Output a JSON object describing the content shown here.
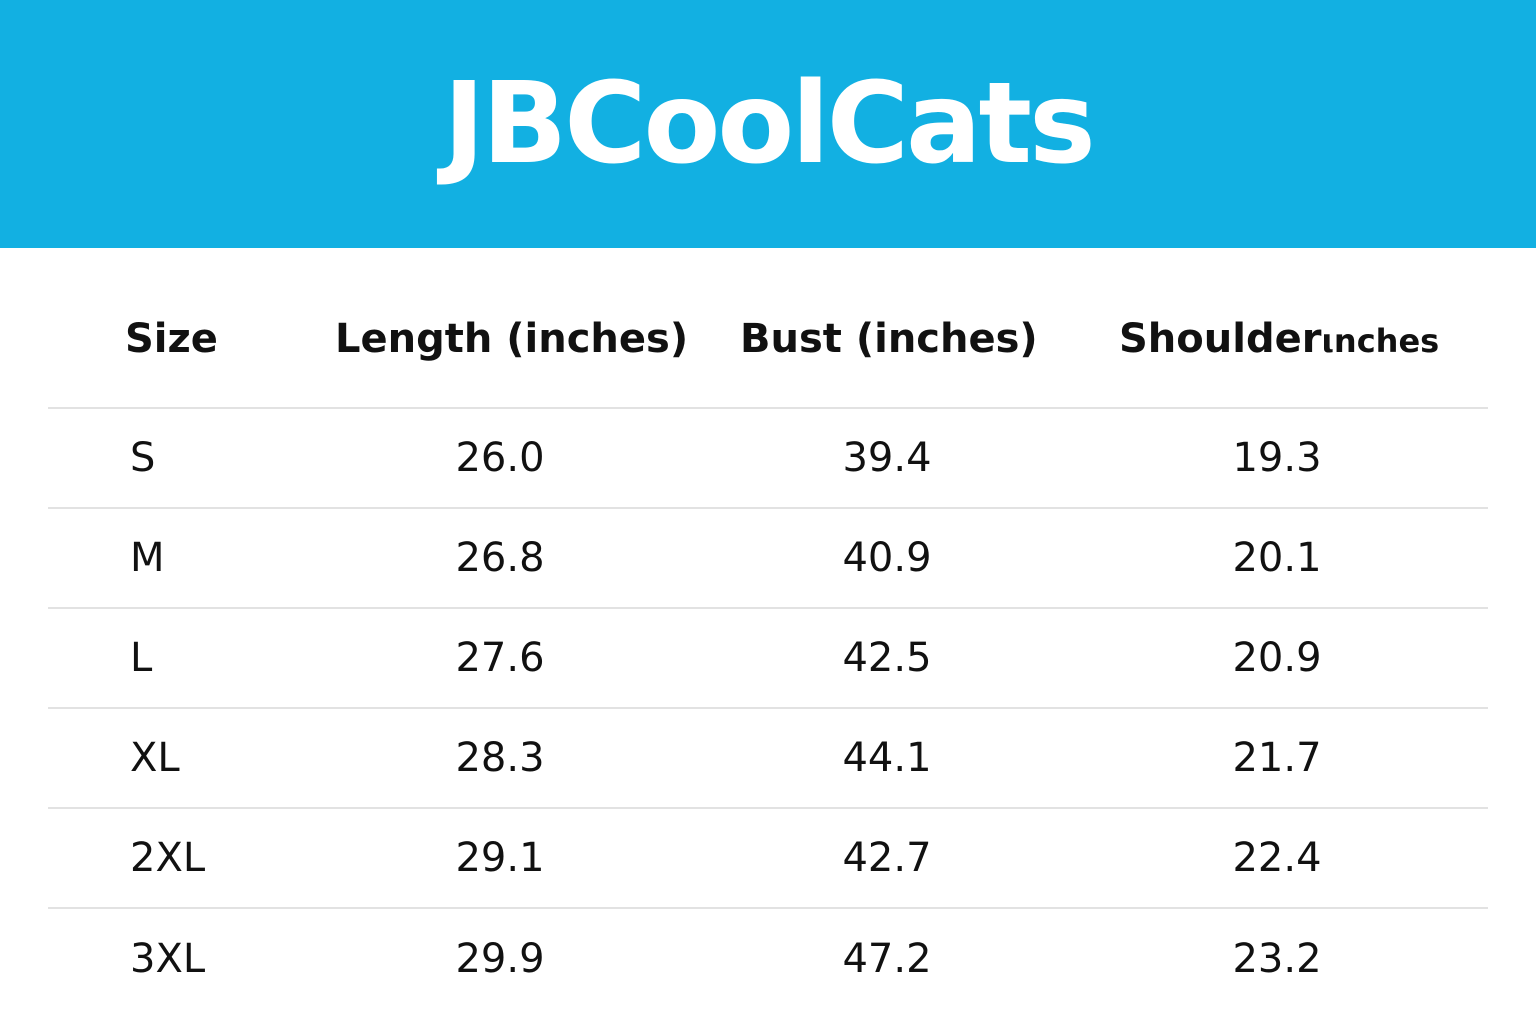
{
  "header": {
    "brand": "JBCoolCats",
    "background_color": "#12b0e2"
  },
  "table": {
    "columns": [
      {
        "label": "Size",
        "suffix": ""
      },
      {
        "label": "Length (inches)",
        "suffix": ""
      },
      {
        "label": "Bust (inches)",
        "suffix": ""
      },
      {
        "label": "Shoulder",
        "suffix": "ιnches"
      }
    ],
    "rows": [
      {
        "size": "S",
        "length": "26.0",
        "bust": "39.4",
        "shoulder": "19.3"
      },
      {
        "size": "M",
        "length": "26.8",
        "bust": "40.9",
        "shoulder": "20.1"
      },
      {
        "size": "L",
        "length": "27.6",
        "bust": "42.5",
        "shoulder": "20.9"
      },
      {
        "size": "XL",
        "length": "28.3",
        "bust": "44.1",
        "shoulder": "21.7"
      },
      {
        "size": "2XL",
        "length": "29.1",
        "bust": "42.7",
        "shoulder": "22.4"
      },
      {
        "size": "3XL",
        "length": "29.9",
        "bust": "47.2",
        "shoulder": "23.2"
      }
    ]
  }
}
